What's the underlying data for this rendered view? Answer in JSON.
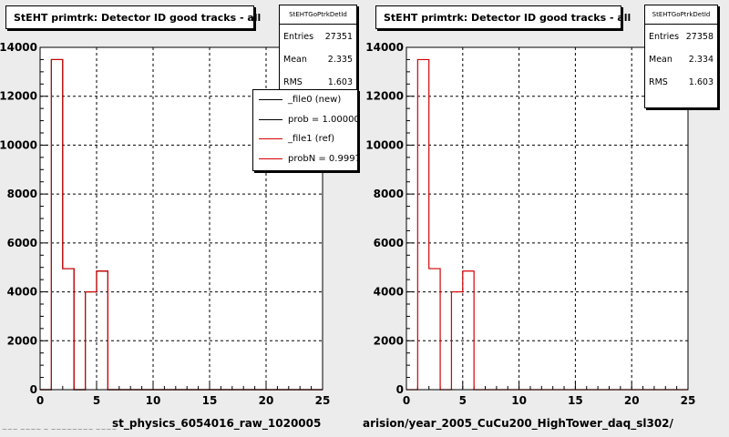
{
  "panels": [
    {
      "title": "StEHT primtrk: Detector ID good tracks - all",
      "stats": {
        "name": "StEHTGoPtrkDetId",
        "rows": [
          {
            "label": "Entries",
            "value": "27351"
          },
          {
            "label": "Mean",
            "value": "2.335"
          },
          {
            "label": "RMS",
            "value": "1.603"
          }
        ]
      },
      "xtitle": "st_physics_6054016_raw_1020005"
    },
    {
      "title": "StEHT primtrk: Detector ID good tracks - all",
      "stats": {
        "name": "StEHTGoPtrkDetId",
        "rows": [
          {
            "label": "Entries",
            "value": "27358"
          },
          {
            "label": "Mean",
            "value": "2.334"
          },
          {
            "label": "RMS",
            "value": "1.603"
          }
        ]
      },
      "xtitle": "arision/year_2005_CuCu200_HighTower_daq_sl302/"
    }
  ],
  "legend": {
    "items": [
      {
        "label": "_file0 (new)",
        "color": "#000000"
      },
      {
        "label": "prob = 1.000000",
        "color": "#000000"
      },
      {
        "label": "_file1 (ref)",
        "color": "#d40000"
      },
      {
        "label": "probN = 0.999718",
        "color": "#d40000"
      }
    ]
  },
  "footer": "~~~ ~~~~ ~ ~~~~~~~~ ~~~~",
  "chart_data": [
    {
      "type": "bar",
      "title": "StEHT primtrk: Detector ID good tracks - all",
      "xlabel": "st_physics_6054016_raw_1020005",
      "ylabel": "",
      "xlim": [
        0,
        25
      ],
      "ylim": [
        0,
        14000
      ],
      "xticks": [
        0,
        5,
        10,
        15,
        20,
        25
      ],
      "yticks": [
        0,
        2000,
        4000,
        6000,
        8000,
        10000,
        12000,
        14000
      ],
      "grid": true,
      "bin_edges": [
        0,
        1,
        2,
        3,
        4,
        5,
        6,
        7,
        8,
        9,
        10,
        11,
        12,
        13,
        14,
        15,
        16,
        17,
        18,
        19,
        20,
        21,
        22,
        23,
        24,
        25
      ],
      "series": [
        {
          "name": "_file0 (new)",
          "color": "#000000",
          "values": [
            0,
            13500,
            4950,
            0,
            4000,
            4850,
            0,
            0,
            0,
            0,
            0,
            0,
            0,
            0,
            0,
            0,
            0,
            0,
            0,
            0,
            0,
            0,
            0,
            0,
            0
          ]
        },
        {
          "name": "_file1 (ref)",
          "color": "#d40000",
          "values": [
            0,
            13500,
            4950,
            0,
            4000,
            4850,
            0,
            0,
            0,
            0,
            0,
            0,
            0,
            0,
            0,
            0,
            0,
            0,
            0,
            0,
            0,
            0,
            0,
            0,
            0
          ]
        }
      ]
    },
    {
      "type": "bar",
      "title": "StEHT primtrk: Detector ID good tracks - all",
      "xlabel": "arision/year_2005_CuCu200_HighTower_daq_sl302/",
      "ylabel": "",
      "xlim": [
        0,
        25
      ],
      "ylim": [
        0,
        14000
      ],
      "xticks": [
        0,
        5,
        10,
        15,
        20,
        25
      ],
      "yticks": [
        0,
        2000,
        4000,
        6000,
        8000,
        10000,
        12000,
        14000
      ],
      "grid": true,
      "bin_edges": [
        0,
        1,
        2,
        3,
        4,
        5,
        6,
        7,
        8,
        9,
        10,
        11,
        12,
        13,
        14,
        15,
        16,
        17,
        18,
        19,
        20,
        21,
        22,
        23,
        24,
        25
      ],
      "series": [
        {
          "color": "#d40000",
          "values": [
            0,
            13500,
            4950,
            0,
            4000,
            4850,
            0,
            0,
            0,
            0,
            0,
            0,
            0,
            0,
            0,
            0,
            0,
            0,
            0,
            0,
            0,
            0,
            0,
            0,
            0
          ]
        }
      ]
    }
  ]
}
